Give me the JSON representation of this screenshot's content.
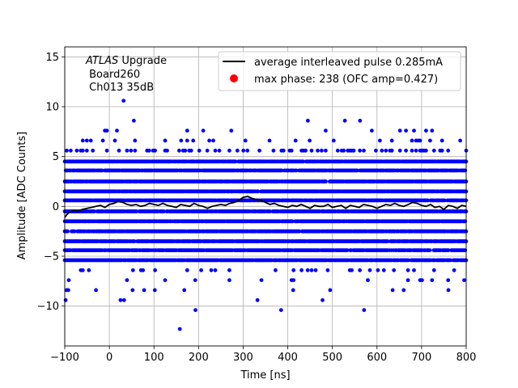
{
  "chart_data": {
    "type": "scatter",
    "title": "",
    "xlabel": "Time [ns]",
    "ylabel": "Amplitude [ADC Counts]",
    "xlim": [
      -100,
      800
    ],
    "ylim": [
      -14,
      16
    ],
    "xticks": [
      -100,
      0,
      100,
      200,
      300,
      400,
      500,
      600,
      700,
      800
    ],
    "yticks": [
      -10,
      -5,
      0,
      5,
      10,
      15
    ],
    "grid": true,
    "legend_position": "top-right",
    "annotation": {
      "line1_italic": "ATLAS",
      "line1_rest": " Upgrade",
      "line2": " Board260",
      "line3": " Ch013 35dB"
    },
    "series": [
      {
        "name": "average interleaved pulse 0.285mA",
        "kind": "line",
        "color": "#000000",
        "x": [
          -100,
          -95,
          -90,
          -80,
          -70,
          -60,
          -50,
          -40,
          -30,
          -20,
          -10,
          0,
          10,
          20,
          30,
          40,
          50,
          60,
          70,
          80,
          90,
          100,
          110,
          120,
          130,
          140,
          150,
          160,
          170,
          180,
          190,
          200,
          210,
          220,
          230,
          240,
          250,
          260,
          270,
          280,
          290,
          300,
          310,
          320,
          330,
          340,
          350,
          360,
          370,
          380,
          390,
          400,
          410,
          420,
          430,
          440,
          450,
          460,
          470,
          480,
          490,
          500,
          510,
          520,
          530,
          540,
          550,
          560,
          570,
          580,
          590,
          600,
          610,
          620,
          630,
          640,
          650,
          660,
          670,
          680,
          690,
          700,
          710,
          720,
          730,
          740,
          750,
          760,
          770,
          780,
          790,
          800
        ],
        "y": [
          -1.1,
          -0.8,
          -0.6,
          -0.4,
          -0.5,
          -0.3,
          -0.2,
          -0.1,
          0.0,
          0.1,
          -0.1,
          0.2,
          0.3,
          0.5,
          0.4,
          0.2,
          0.1,
          0.2,
          0.0,
          0.1,
          0.3,
          0.2,
          0.1,
          0.3,
          0.1,
          0.0,
          -0.1,
          0.2,
          0.1,
          0.0,
          0.3,
          0.1,
          0.0,
          -0.2,
          0.0,
          0.1,
          0.2,
          0.1,
          0.3,
          0.4,
          0.6,
          0.9,
          1.0,
          0.8,
          0.7,
          0.6,
          0.4,
          0.2,
          0.3,
          0.1,
          0.0,
          -0.1,
          0.1,
          0.0,
          0.2,
          0.0,
          -0.2,
          0.1,
          0.0,
          0.0,
          0.2,
          -0.1,
          0.0,
          0.1,
          -0.2,
          0.1,
          0.0,
          -0.1,
          0.2,
          0.1,
          0.0,
          -0.2,
          0.0,
          0.2,
          0.1,
          0.3,
          0.1,
          0.0,
          0.2,
          0.4,
          0.3,
          0.1,
          0.0,
          0.2,
          -0.1,
          0.0,
          -0.3,
          0.1,
          0.0,
          -0.2,
          0.1,
          0.0
        ]
      },
      {
        "name": "max phase: 238 (OFC amp=0.427)",
        "kind": "scatter",
        "color": "#0000ff",
        "legend_marker_color": "#ff0000",
        "dense_levels": [
          -5.4,
          -4.4,
          -3.5,
          -2.5,
          -1.5,
          -0.5,
          0.6,
          1.5,
          2.5,
          3.6,
          4.5
        ],
        "sparse_levels": [
          -6.4,
          -7.4,
          5.6,
          6.6,
          7.6
        ],
        "outliers": [
          {
            "x": -96,
            "y": -8.4
          },
          {
            "x": -92,
            "y": -8.4
          },
          {
            "x": -98,
            "y": -9.4
          },
          {
            "x": -30,
            "y": -8.4
          },
          {
            "x": 25,
            "y": -9.4
          },
          {
            "x": 33,
            "y": -9.4
          },
          {
            "x": 52,
            "y": -8.4
          },
          {
            "x": 78,
            "y": -8.4
          },
          {
            "x": 102,
            "y": -8.4
          },
          {
            "x": 168,
            "y": -8.4
          },
          {
            "x": 193,
            "y": -10.4
          },
          {
            "x": 158,
            "y": -12.3
          },
          {
            "x": 332,
            "y": -9.4
          },
          {
            "x": 385,
            "y": -10.4
          },
          {
            "x": 478,
            "y": -9.4
          },
          {
            "x": 571,
            "y": -10.4
          },
          {
            "x": 495,
            "y": -8.4
          },
          {
            "x": 635,
            "y": -8.4
          },
          {
            "x": 660,
            "y": -8.4
          },
          {
            "x": 760,
            "y": -8.4
          },
          {
            "x": 412,
            "y": -8.4
          },
          {
            "x": 32,
            "y": 10.6
          },
          {
            "x": 55,
            "y": 8.6
          },
          {
            "x": 445,
            "y": 8.6
          },
          {
            "x": 528,
            "y": 8.6
          },
          {
            "x": 562,
            "y": 8.6
          }
        ]
      }
    ]
  }
}
